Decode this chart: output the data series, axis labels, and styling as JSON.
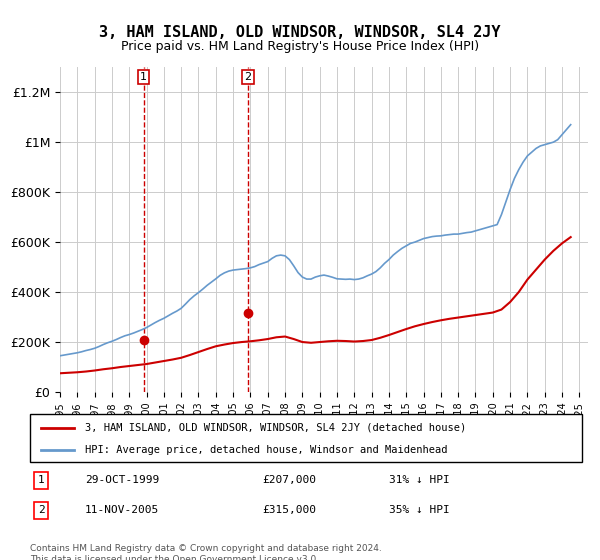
{
  "title": "3, HAM ISLAND, OLD WINDSOR, WINDSOR, SL4 2JY",
  "subtitle": "Price paid vs. HM Land Registry's House Price Index (HPI)",
  "ylabel_ticks": [
    "£0",
    "£200K",
    "£400K",
    "£600K",
    "£800K",
    "£1M",
    "£1.2M"
  ],
  "ytick_vals": [
    0,
    200000,
    400000,
    600000,
    800000,
    1000000,
    1200000
  ],
  "ylim": [
    0,
    1300000
  ],
  "xlim_start": 1995.0,
  "xlim_end": 2025.5,
  "sale1_x": 1999.83,
  "sale1_y": 207000,
  "sale1_label": "1",
  "sale2_x": 2005.87,
  "sale2_y": 315000,
  "sale2_label": "2",
  "red_line_color": "#cc0000",
  "blue_line_color": "#6699cc",
  "dashed_vline_color": "#cc0000",
  "grid_color": "#cccccc",
  "background_color": "#ffffff",
  "legend_line1": "3, HAM ISLAND, OLD WINDSOR, WINDSOR, SL4 2JY (detached house)",
  "legend_line2": "HPI: Average price, detached house, Windsor and Maidenhead",
  "table_row1": [
    "1",
    "29-OCT-1999",
    "£207,000",
    "31% ↓ HPI"
  ],
  "table_row2": [
    "2",
    "11-NOV-2005",
    "£315,000",
    "35% ↓ HPI"
  ],
  "footer": "Contains HM Land Registry data © Crown copyright and database right 2024.\nThis data is licensed under the Open Government Licence v3.0.",
  "hpi_years": [
    1995,
    1995.25,
    1995.5,
    1995.75,
    1996,
    1996.25,
    1996.5,
    1996.75,
    1997,
    1997.25,
    1997.5,
    1997.75,
    1998,
    1998.25,
    1998.5,
    1998.75,
    1999,
    1999.25,
    1999.5,
    1999.75,
    2000,
    2000.25,
    2000.5,
    2000.75,
    2001,
    2001.25,
    2001.5,
    2001.75,
    2002,
    2002.25,
    2002.5,
    2002.75,
    2003,
    2003.25,
    2003.5,
    2003.75,
    2004,
    2004.25,
    2004.5,
    2004.75,
    2005,
    2005.25,
    2005.5,
    2005.75,
    2006,
    2006.25,
    2006.5,
    2006.75,
    2007,
    2007.25,
    2007.5,
    2007.75,
    2008,
    2008.25,
    2008.5,
    2008.75,
    2009,
    2009.25,
    2009.5,
    2009.75,
    2010,
    2010.25,
    2010.5,
    2010.75,
    2011,
    2011.25,
    2011.5,
    2011.75,
    2012,
    2012.25,
    2012.5,
    2012.75,
    2013,
    2013.25,
    2013.5,
    2013.75,
    2014,
    2014.25,
    2014.5,
    2014.75,
    2015,
    2015.25,
    2015.5,
    2015.75,
    2016,
    2016.25,
    2016.5,
    2016.75,
    2017,
    2017.25,
    2017.5,
    2017.75,
    2018,
    2018.25,
    2018.5,
    2018.75,
    2019,
    2019.25,
    2019.5,
    2019.75,
    2020,
    2020.25,
    2020.5,
    2020.75,
    2021,
    2021.25,
    2021.5,
    2021.75,
    2022,
    2022.25,
    2022.5,
    2022.75,
    2023,
    2023.25,
    2023.5,
    2023.75,
    2024,
    2024.25,
    2024.5
  ],
  "hpi_values": [
    145000,
    148000,
    151000,
    154000,
    157000,
    161000,
    166000,
    170000,
    175000,
    182000,
    190000,
    197000,
    203000,
    210000,
    218000,
    225000,
    230000,
    236000,
    243000,
    250000,
    258000,
    268000,
    278000,
    287000,
    295000,
    305000,
    315000,
    324000,
    335000,
    352000,
    370000,
    385000,
    398000,
    412000,
    427000,
    440000,
    453000,
    467000,
    477000,
    484000,
    488000,
    490000,
    492000,
    494000,
    497000,
    502000,
    510000,
    516000,
    522000,
    535000,
    545000,
    548000,
    545000,
    530000,
    505000,
    478000,
    460000,
    452000,
    452000,
    460000,
    465000,
    468000,
    464000,
    459000,
    453000,
    452000,
    451000,
    452000,
    450000,
    452000,
    457000,
    465000,
    472000,
    482000,
    497000,
    515000,
    530000,
    548000,
    562000,
    575000,
    585000,
    595000,
    600000,
    607000,
    614000,
    618000,
    622000,
    624000,
    625000,
    628000,
    630000,
    632000,
    632000,
    635000,
    638000,
    640000,
    645000,
    650000,
    655000,
    660000,
    665000,
    670000,
    710000,
    760000,
    810000,
    855000,
    890000,
    920000,
    945000,
    960000,
    975000,
    985000,
    990000,
    995000,
    1000000,
    1010000,
    1030000,
    1050000,
    1070000
  ],
  "red_years": [
    1995,
    1995.5,
    1996,
    1996.5,
    1997,
    1997.5,
    1998,
    1998.5,
    1999,
    1999.5,
    2000,
    2000.5,
    2001,
    2001.5,
    2002,
    2002.5,
    2003,
    2003.5,
    2004,
    2004.5,
    2005,
    2005.5,
    2006,
    2006.5,
    2007,
    2007.5,
    2008,
    2008.5,
    2009,
    2009.5,
    2010,
    2010.5,
    2011,
    2011.5,
    2012,
    2012.5,
    2013,
    2013.5,
    2014,
    2014.5,
    2015,
    2015.5,
    2016,
    2016.5,
    2017,
    2017.5,
    2018,
    2018.5,
    2019,
    2019.5,
    2020,
    2020.5,
    2021,
    2021.5,
    2022,
    2022.5,
    2023,
    2023.5,
    2024,
    2024.5
  ],
  "red_values": [
    75000,
    77000,
    79000,
    82000,
    86000,
    91000,
    95000,
    100000,
    104000,
    108000,
    112000,
    118000,
    124000,
    130000,
    137000,
    148000,
    160000,
    172000,
    183000,
    190000,
    196000,
    200000,
    203000,
    207000,
    212000,
    219000,
    222000,
    212000,
    200000,
    197000,
    200000,
    203000,
    205000,
    204000,
    202000,
    204000,
    208000,
    217000,
    228000,
    240000,
    252000,
    263000,
    272000,
    280000,
    287000,
    293000,
    298000,
    303000,
    308000,
    313000,
    318000,
    330000,
    360000,
    400000,
    450000,
    490000,
    530000,
    565000,
    595000,
    620000
  ],
  "xtick_years": [
    1995,
    1996,
    1997,
    1998,
    1999,
    2000,
    2001,
    2002,
    2003,
    2004,
    2005,
    2006,
    2007,
    2008,
    2009,
    2010,
    2011,
    2012,
    2013,
    2014,
    2015,
    2016,
    2017,
    2018,
    2019,
    2020,
    2021,
    2022,
    2023,
    2024,
    2025
  ]
}
